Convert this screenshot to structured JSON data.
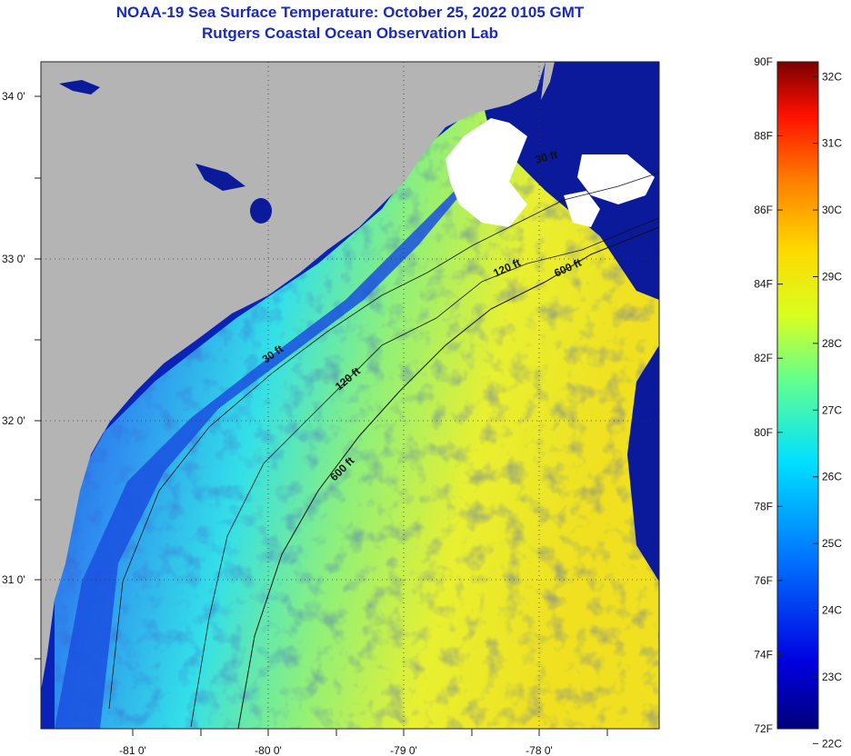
{
  "title": {
    "line1": "NOAA-19 Sea Surface Temperature:  October 25, 2022 0105 GMT",
    "line2": "Rutgers Coastal Ocean Observation Lab"
  },
  "lat_labels": [
    "34 0'",
    "33 0'",
    "32 0'",
    "31 0'"
  ],
  "lon_labels": [
    "-81 0'",
    "-80 0'",
    "-79 0'",
    "-78 0'"
  ],
  "contours": {
    "label_30": "30 ft",
    "label_120": "120 ft",
    "label_600": "600 ft"
  },
  "colorbar": {
    "fahrenheit": [
      "90F",
      "88F",
      "86F",
      "84F",
      "82F",
      "80F",
      "78F",
      "76F",
      "74F",
      "72F"
    ],
    "celsius": [
      "32C",
      "31C",
      "30C",
      "29C",
      "28C",
      "27C",
      "26C",
      "25C",
      "24C",
      "23C",
      "22C"
    ],
    "min_f": 72,
    "max_f": 90
  },
  "colors": {
    "land": "#b4b4b4",
    "cloud": "#ffffff",
    "cold_water": "#0a1a9a",
    "title": "#1a2bb8"
  }
}
